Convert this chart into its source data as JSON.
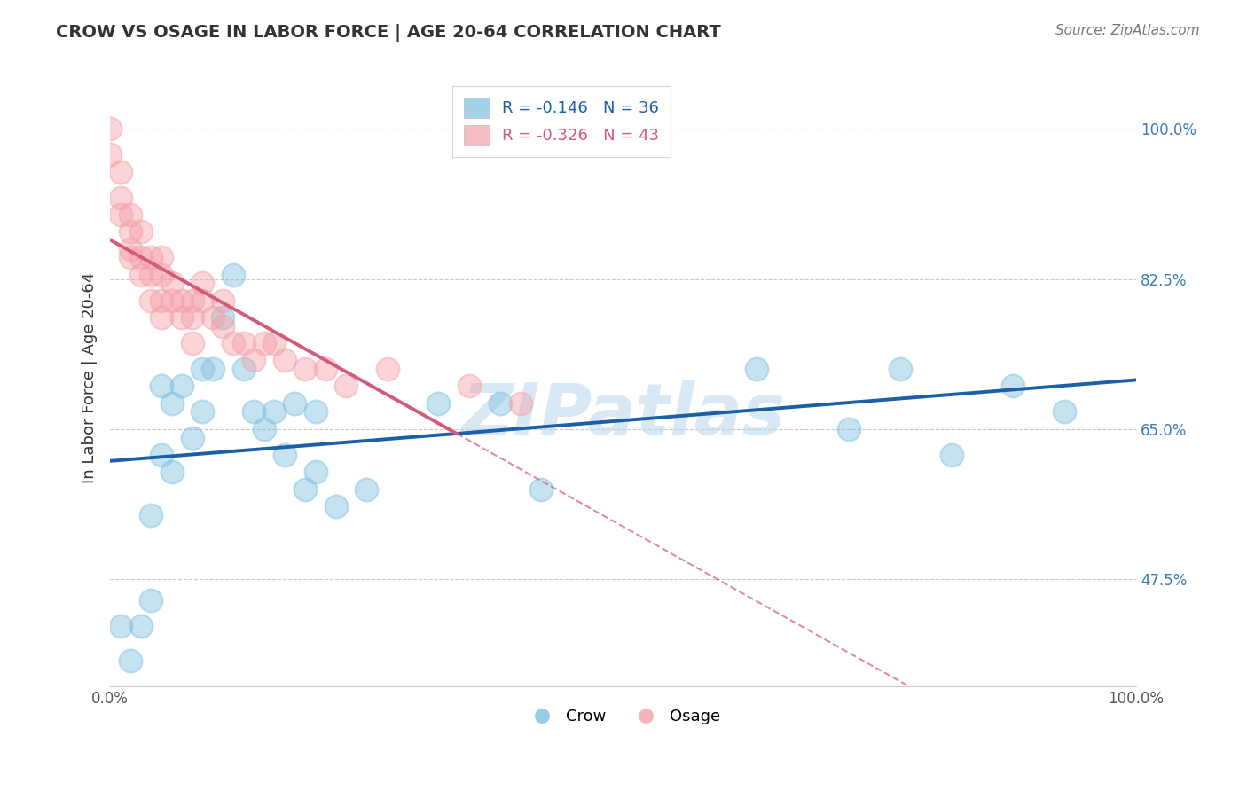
{
  "title": "CROW VS OSAGE IN LABOR FORCE | AGE 20-64 CORRELATION CHART",
  "source": "Source: ZipAtlas.com",
  "ylabel": "In Labor Force | Age 20-64",
  "xlim": [
    0.0,
    1.0
  ],
  "ylim": [
    0.35,
    1.07
  ],
  "yticks": [
    0.475,
    0.65,
    0.825,
    1.0
  ],
  "ytick_labels": [
    "47.5%",
    "65.0%",
    "82.5%",
    "100.0%"
  ],
  "xticks": [
    0.0,
    0.1,
    0.2,
    0.3,
    0.4,
    0.5,
    0.6,
    0.7,
    0.8,
    0.9,
    1.0
  ],
  "xtick_labels": [
    "0.0%",
    "",
    "",
    "",
    "",
    "",
    "",
    "",
    "",
    "",
    "100.0%"
  ],
  "crow_color": "#7fbfdf",
  "osage_color": "#f4a0a8",
  "crow_line_color": "#1a5fa8",
  "osage_line_color": "#d45a7a",
  "crow_R": -0.146,
  "crow_N": 36,
  "osage_R": -0.326,
  "osage_N": 43,
  "crow_x": [
    0.01,
    0.02,
    0.03,
    0.04,
    0.04,
    0.05,
    0.05,
    0.06,
    0.06,
    0.07,
    0.08,
    0.09,
    0.09,
    0.1,
    0.11,
    0.12,
    0.13,
    0.14,
    0.15,
    0.16,
    0.17,
    0.18,
    0.19,
    0.2,
    0.2,
    0.22,
    0.25,
    0.32,
    0.38,
    0.42,
    0.63,
    0.72,
    0.77,
    0.82,
    0.88,
    0.93
  ],
  "crow_y": [
    0.42,
    0.38,
    0.42,
    0.55,
    0.45,
    0.62,
    0.7,
    0.6,
    0.68,
    0.7,
    0.64,
    0.72,
    0.67,
    0.72,
    0.78,
    0.83,
    0.72,
    0.67,
    0.65,
    0.67,
    0.62,
    0.68,
    0.58,
    0.67,
    0.6,
    0.56,
    0.58,
    0.68,
    0.68,
    0.58,
    0.72,
    0.65,
    0.72,
    0.62,
    0.7,
    0.67
  ],
  "osage_x": [
    0.0,
    0.0,
    0.01,
    0.01,
    0.01,
    0.02,
    0.02,
    0.02,
    0.02,
    0.03,
    0.03,
    0.03,
    0.04,
    0.04,
    0.04,
    0.05,
    0.05,
    0.05,
    0.05,
    0.06,
    0.06,
    0.07,
    0.07,
    0.08,
    0.08,
    0.08,
    0.09,
    0.09,
    0.1,
    0.11,
    0.11,
    0.12,
    0.13,
    0.14,
    0.15,
    0.16,
    0.17,
    0.19,
    0.21,
    0.23,
    0.27,
    0.35,
    0.4
  ],
  "osage_y": [
    1.0,
    0.97,
    0.95,
    0.92,
    0.9,
    0.9,
    0.88,
    0.86,
    0.85,
    0.88,
    0.85,
    0.83,
    0.85,
    0.83,
    0.8,
    0.85,
    0.83,
    0.8,
    0.78,
    0.82,
    0.8,
    0.8,
    0.78,
    0.8,
    0.78,
    0.75,
    0.82,
    0.8,
    0.78,
    0.8,
    0.77,
    0.75,
    0.75,
    0.73,
    0.75,
    0.75,
    0.73,
    0.72,
    0.72,
    0.7,
    0.72,
    0.7,
    0.68
  ],
  "watermark": "ZIPatlas",
  "background_color": "#ffffff",
  "grid_color": "#c8c8c8"
}
